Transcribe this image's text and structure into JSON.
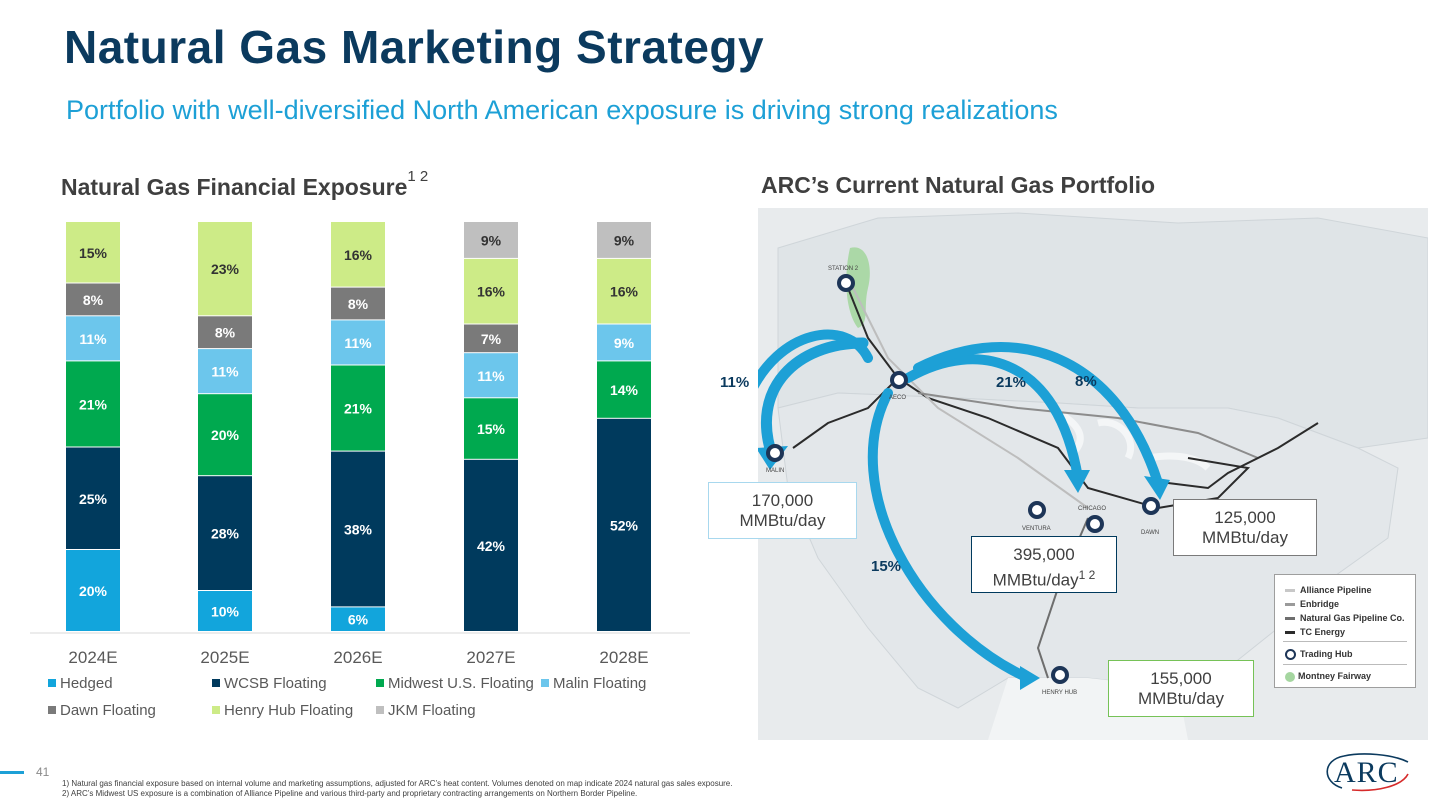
{
  "header": {
    "title": "Natural Gas Marketing Strategy",
    "subtitle": "Portfolio with well-diversified North American exposure is driving strong realizations"
  },
  "left_section": {
    "title": "Natural Gas Financial Exposure",
    "superscript": "1 2"
  },
  "right_section": {
    "title": "ARC’s Current Natural Gas Portfolio"
  },
  "chart_data": {
    "type": "bar",
    "stacked": true,
    "categories": [
      "2024E",
      "2025E",
      "2026E",
      "2027E",
      "2028E"
    ],
    "series": [
      {
        "name": "Hedged",
        "color": "#12a5dc",
        "label_color": "#ffffff",
        "values": [
          20,
          10,
          6,
          0,
          0
        ]
      },
      {
        "name": "WCSB Floating",
        "color": "#003a5d",
        "label_color": "#ffffff",
        "values": [
          25,
          28,
          38,
          42,
          52
        ]
      },
      {
        "name": "Midwest U.S. Floating",
        "color": "#00a94f",
        "label_color": "#ffffff",
        "values": [
          21,
          20,
          21,
          15,
          14
        ]
      },
      {
        "name": "Malin Floating",
        "color": "#6cc6ec",
        "label_color": "#ffffff",
        "values": [
          11,
          11,
          11,
          11,
          9
        ]
      },
      {
        "name": "Dawn Floating",
        "color": "#7a7a7a",
        "label_color": "#ffffff",
        "values": [
          8,
          8,
          8,
          7,
          0
        ]
      },
      {
        "name": "Henry Hub Floating",
        "color": "#cdeb87",
        "label_color": "#333333",
        "values": [
          15,
          23,
          16,
          16,
          16
        ]
      },
      {
        "name": "JKM Floating",
        "color": "#bfbfbf",
        "label_color": "#333333",
        "values": [
          0,
          0,
          0,
          9,
          9
        ]
      }
    ],
    "ylim": [
      0,
      100
    ],
    "grid": false,
    "legend_position": "bottom"
  },
  "map": {
    "percent_labels": [
      "11%",
      "21%",
      "8%",
      "15%"
    ],
    "volume_boxes": [
      {
        "text": "170,000 MMBtu/day",
        "line1": "170,000",
        "line2": "MMBtu/day",
        "sup": "",
        "border": "#a8d8ee"
      },
      {
        "text": "395,000 MMBtu/day",
        "line1": "395,000",
        "line2": "MMBtu/day",
        "sup": "1 2",
        "border": "#003a5d"
      },
      {
        "text": "125,000 MMBtu/day",
        "line1": "125,000",
        "line2": "MMBtu/day",
        "sup": "",
        "border": "#7a7a7a"
      },
      {
        "text": "155,000 MMBtu/day",
        "line1": "155,000",
        "line2": "MMBtu/day",
        "sup": "",
        "border": "#76c257"
      }
    ],
    "hubs": [
      "STATION 2",
      "AECO",
      "MALIN",
      "VENTURA",
      "CHICAGO",
      "DAWN",
      "HENRY HUB"
    ],
    "legend": {
      "pipelines": [
        {
          "name": "Alliance Pipeline",
          "color": "#c8c8c8"
        },
        {
          "name": "Enbridge",
          "color": "#9a9a9a"
        },
        {
          "name": "Natural Gas Pipeline Co.",
          "color": "#6e6e6e"
        },
        {
          "name": "TC Energy",
          "color": "#2b2b2b"
        }
      ],
      "trading_hub": "Trading Hub",
      "montney": "Montney Fairway"
    }
  },
  "footer": {
    "page_number": "41",
    "footnotes": [
      "1)  Natural gas financial exposure based on internal volume and marketing assumptions, adjusted for ARC’s heat content. Volumes denoted on map indicate 2024 natural gas sales exposure.",
      "2)  ARC’s Midwest US exposure is a combination of Alliance Pipeline and various third-party and proprietary contracting arrangements on Northern Border Pipeline."
    ],
    "logo_text": "ARC"
  }
}
